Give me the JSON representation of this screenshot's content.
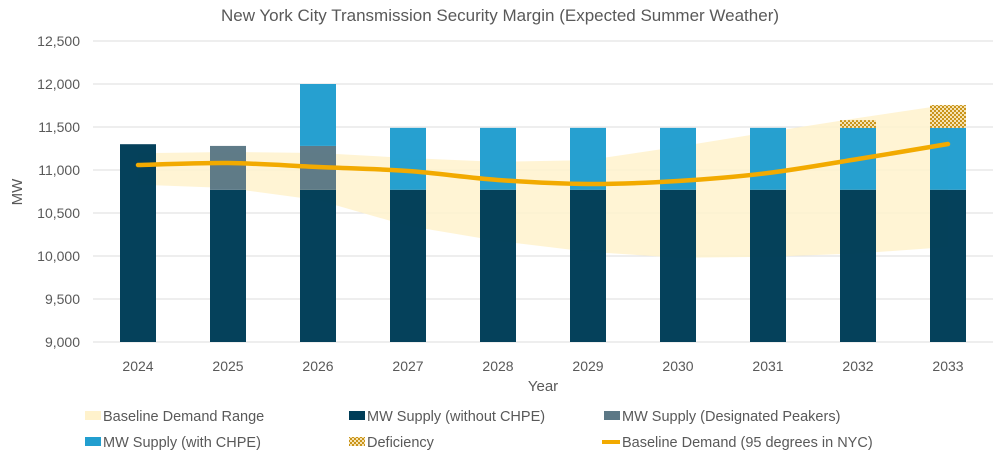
{
  "chart_data": {
    "type": "bar",
    "title": "New York City Transmission Security Margin (Expected Summer Weather)",
    "xlabel": "Year",
    "ylabel": "MW",
    "ylim": [
      9000,
      12500
    ],
    "yticks": [
      9000,
      9500,
      10000,
      10500,
      11000,
      11500,
      12000,
      12500
    ],
    "ytick_labels": [
      "9,000",
      "9,500",
      "10,000",
      "10,500",
      "11,000",
      "11,500",
      "12,000",
      "12,500"
    ],
    "grid": true,
    "legend_position": "bottom",
    "categories": [
      "2024",
      "2025",
      "2026",
      "2027",
      "2028",
      "2029",
      "2030",
      "2031",
      "2032",
      "2033"
    ],
    "series": [
      {
        "name": "Baseline Demand Range",
        "type": "area-range",
        "color": "#FFF2CC",
        "upper": [
          11195,
          11210,
          11198,
          11140,
          11095,
          11115,
          11270,
          11440,
          11605,
          11760
        ],
        "lower": [
          10830,
          10790,
          10650,
          10350,
          10175,
          10050,
          9980,
          9990,
          10030,
          10105
        ]
      },
      {
        "name": "MW Supply (without CHPE)",
        "type": "stacked-bar",
        "color": "#003D58",
        "values": [
          11300,
          10770,
          10770,
          10770,
          10770,
          10770,
          10770,
          10770,
          10770,
          10770
        ]
      },
      {
        "name": "MW Supply (Designated Peakers)",
        "type": "stacked-bar",
        "color": "#5C7886",
        "values": [
          0,
          510,
          510,
          0,
          0,
          0,
          0,
          0,
          0,
          0
        ]
      },
      {
        "name": "MW Supply (with CHPE)",
        "type": "stacked-bar",
        "color": "#229ECF",
        "values": [
          0,
          0,
          720,
          720,
          720,
          720,
          720,
          720,
          720,
          720
        ]
      },
      {
        "name": "Deficiency",
        "type": "stacked-bar",
        "color": "#C9941A",
        "pattern": "checkerboard",
        "values": [
          0,
          0,
          0,
          0,
          0,
          0,
          0,
          0,
          90,
          265
        ]
      },
      {
        "name": "Baseline Demand (95 degrees in NYC)",
        "type": "line",
        "color": "#F2AA00",
        "values": [
          11058,
          11081,
          11035,
          10988,
          10884,
          10837,
          10872,
          10965,
          11128,
          11302
        ]
      }
    ],
    "legend": [
      {
        "label": "Baseline Demand Range",
        "swatch": "area",
        "color": "#FFF2CC"
      },
      {
        "label": "MW Supply (without CHPE)",
        "swatch": "bar",
        "color": "#003D58"
      },
      {
        "label": "MW Supply (Designated Peakers)",
        "swatch": "bar",
        "color": "#5C7886"
      },
      {
        "label": "MW Supply (with CHPE)",
        "swatch": "bar",
        "color": "#229ECF"
      },
      {
        "label": "Deficiency",
        "swatch": "pattern",
        "color": "#C9941A"
      },
      {
        "label": "Baseline Demand (95 degrees in NYC)",
        "swatch": "line",
        "color": "#F2AA00"
      }
    ]
  }
}
